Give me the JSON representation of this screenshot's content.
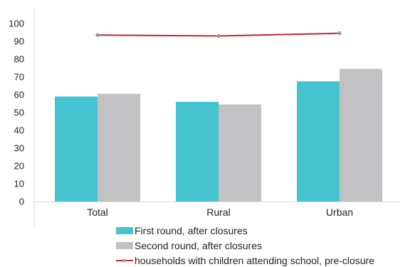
{
  "chart_data": {
    "type": "bar",
    "categories": [
      "Total",
      "Rural",
      "Urban"
    ],
    "series": [
      {
        "name": "First round, after closures",
        "type": "bar",
        "values": [
          59,
          56,
          67.5
        ],
        "color": "#45C3CF"
      },
      {
        "name": "Second round, after closures",
        "type": "bar",
        "values": [
          60.5,
          54.5,
          74.5
        ],
        "color": "#C2C2C4"
      },
      {
        "name": "households with children attending school, pre-closure",
        "type": "line",
        "values": [
          93.5,
          93,
          94.5
        ],
        "color": "#C0282D"
      }
    ],
    "title": "",
    "xlabel": "",
    "ylabel": "",
    "ylim": [
      0,
      100
    ],
    "yticks": [
      0,
      10,
      20,
      30,
      40,
      50,
      60,
      70,
      80,
      90,
      100
    ],
    "grid": false,
    "legend": "bottom"
  }
}
